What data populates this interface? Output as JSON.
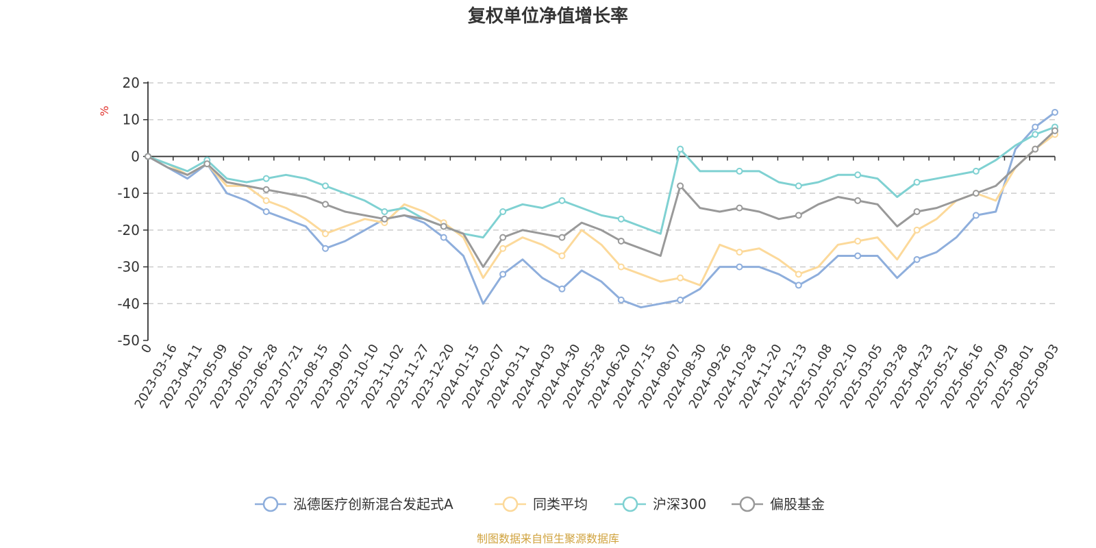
{
  "chart_data": {
    "type": "line",
    "title": "复权单位净值增长率",
    "ylabel": "%",
    "ylim": [
      -50,
      20
    ],
    "yticks": [
      20,
      10,
      0,
      -10,
      -20,
      -30,
      -40,
      -50
    ],
    "x_tick_labels": [
      "0",
      "2023-03-16",
      "2023-04-11",
      "2023-05-09",
      "2023-06-01",
      "2023-06-28",
      "2023-07-21",
      "2023-08-15",
      "2023-09-07",
      "2023-10-10",
      "2023-11-02",
      "2023-11-27",
      "2023-12-20",
      "2024-01-15",
      "2024-02-07",
      "2024-03-11",
      "2024-04-03",
      "2024-04-30",
      "2024-05-28",
      "2024-06-20",
      "2024-07-15",
      "2024-08-07",
      "2024-08-30",
      "2024-09-26",
      "2024-10-28",
      "2024-11-20",
      "2024-12-13",
      "2025-01-08",
      "2025-02-10",
      "2025-03-05",
      "2025-03-28",
      "2025-04-23",
      "2025-05-21",
      "2025-06-16",
      "2025-07-09",
      "2025-08-01",
      "2025-09-03"
    ],
    "grid": true,
    "legend_position": "bottom",
    "series": [
      {
        "name": "泓德医疗创新混合发起式A",
        "color": "#8eaedc",
        "values": [
          0,
          -3,
          -6,
          -2,
          -10,
          -12,
          -15,
          -17,
          -19,
          -25,
          -23,
          -20,
          -17,
          -16,
          -18,
          -22,
          -27,
          -40,
          -32,
          -28,
          -33,
          -36,
          -31,
          -34,
          -39,
          -41,
          -40,
          -39,
          -36,
          -30,
          -30,
          -30,
          -32,
          -35,
          -32,
          -27,
          -27,
          -27,
          -33,
          -28,
          -26,
          -22,
          -16,
          -15,
          2,
          8,
          12
        ]
      },
      {
        "name": "同类平均",
        "color": "#fcd99a",
        "values": [
          0,
          -2,
          -5,
          -2,
          -8,
          -8,
          -12,
          -14,
          -17,
          -21,
          -19,
          -17,
          -18,
          -13,
          -15,
          -18,
          -22,
          -33,
          -25,
          -22,
          -24,
          -27,
          -20,
          -24,
          -30,
          -32,
          -34,
          -33,
          -35,
          -24,
          -26,
          -25,
          -28,
          -32,
          -30,
          -24,
          -23,
          -22,
          -28,
          -20,
          -17,
          -12,
          -10,
          -12,
          -3,
          2,
          6
        ]
      },
      {
        "name": "沪深300",
        "color": "#7fd1d2",
        "values": [
          0,
          -2,
          -4,
          -1,
          -6,
          -7,
          -6,
          -5,
          -6,
          -8,
          -10,
          -12,
          -15,
          -14,
          -17,
          -19,
          -21,
          -22,
          -15,
          -13,
          -14,
          -12,
          -14,
          -16,
          -17,
          -19,
          -21,
          2,
          -4,
          -4,
          -4,
          -4,
          -7,
          -8,
          -7,
          -5,
          -5,
          -6,
          -11,
          -7,
          -6,
          -5,
          -4,
          -1,
          3,
          6,
          8
        ]
      },
      {
        "name": "偏股基金",
        "color": "#999999",
        "values": [
          0,
          -3,
          -5,
          -2,
          -7,
          -8,
          -9,
          -10,
          -11,
          -13,
          -15,
          -16,
          -17,
          -16,
          -17,
          -19,
          -21,
          -30,
          -22,
          -20,
          -21,
          -22,
          -18,
          -20,
          -23,
          -25,
          -27,
          -8,
          -14,
          -15,
          -14,
          -15,
          -17,
          -16,
          -13,
          -11,
          -12,
          -13,
          -19,
          -15,
          -14,
          -12,
          -10,
          -8,
          -3,
          2,
          7
        ]
      }
    ]
  },
  "footer": {
    "source_text": "制图数据来自恒生聚源数据库"
  }
}
